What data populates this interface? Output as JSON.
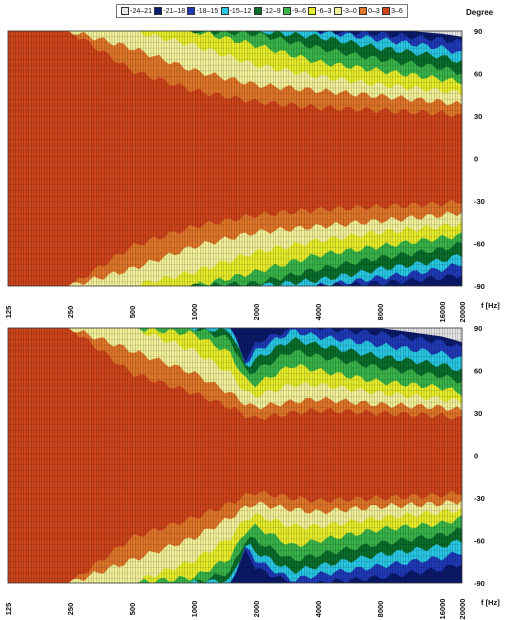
{
  "legend": {
    "items": [
      {
        "label": "-24–21",
        "color": "#e6e6e6"
      },
      {
        "label": "-21–18",
        "color": "#0b1a6b"
      },
      {
        "label": "-18–15",
        "color": "#1f3ab8"
      },
      {
        "label": "-15–12",
        "color": "#29c9e6"
      },
      {
        "label": "-12–9",
        "color": "#0a6e2c"
      },
      {
        "label": "-9–6",
        "color": "#39b54a"
      },
      {
        "label": "-6–3",
        "color": "#e8ef2a"
      },
      {
        "label": "-3–0",
        "color": "#f4f29a"
      },
      {
        "label": "0–3",
        "color": "#e2772a"
      },
      {
        "label": "3–6",
        "color": "#d0451b"
      }
    ]
  },
  "y_title": "Degree",
  "chart_data": [
    {
      "type": "heatmap",
      "xlabel": "f [Hz]",
      "ylabel": "Degree",
      "x_ticks": [
        125,
        250,
        500,
        1000,
        2000,
        4000,
        8000,
        16000,
        20000
      ],
      "y_ticks": [
        90,
        60,
        30,
        0,
        -30,
        -60,
        -90
      ],
      "xlim": [
        125,
        20000
      ],
      "ylim": [
        -90,
        90
      ],
      "x_scale": "log",
      "level_colors": [
        "#e6e6e6",
        "#0b1a6b",
        "#1f3ab8",
        "#29c9e6",
        "#0a6e2c",
        "#39b54a",
        "#e8ef2a",
        "#f4f29a",
        "#e2772a"
      ],
      "boundaries_deg": {
        "freqs": [
          125,
          250,
          500,
          1000,
          2000,
          4000,
          8000,
          16000,
          20000
        ],
        "level_0_3": [
          90,
          90,
          62,
          48,
          40,
          36,
          34,
          32,
          30
        ],
        "level_m3_0": [
          90,
          90,
          78,
          62,
          52,
          48,
          44,
          40,
          38
        ],
        "level_m6_3": [
          90,
          90,
          90,
          80,
          66,
          58,
          52,
          48,
          46
        ],
        "level_m9_6": [
          90,
          90,
          90,
          90,
          80,
          68,
          62,
          56,
          54
        ],
        "level_m12_9": [
          90,
          90,
          90,
          90,
          88,
          78,
          70,
          64,
          60
        ],
        "level_m15_12": [
          90,
          90,
          90,
          90,
          90,
          86,
          78,
          72,
          68
        ],
        "level_m18_15": [
          90,
          90,
          90,
          90,
          90,
          90,
          84,
          78,
          74
        ],
        "level_m21_18": [
          90,
          90,
          90,
          90,
          90,
          90,
          88,
          84,
          82
        ]
      }
    },
    {
      "type": "heatmap",
      "xlabel": "f [Hz]",
      "ylabel": "Degree",
      "x_ticks": [
        125,
        250,
        500,
        1000,
        2000,
        4000,
        8000,
        16000,
        20000
      ],
      "y_ticks": [
        90,
        60,
        30,
        0,
        -30,
        -60,
        -90
      ],
      "xlim": [
        125,
        20000
      ],
      "ylim": [
        -90,
        90
      ],
      "x_scale": "log",
      "level_colors": [
        "#e6e6e6",
        "#0b1a6b",
        "#1f3ab8",
        "#29c9e6",
        "#0a6e2c",
        "#39b54a",
        "#e8ef2a",
        "#f4f29a",
        "#e2772a"
      ],
      "boundaries_deg": {
        "freqs": [
          125,
          250,
          500,
          1000,
          1500,
          1800,
          2000,
          3000,
          4000,
          8000,
          16000,
          20000
        ],
        "level_0_3": [
          90,
          90,
          58,
          44,
          34,
          28,
          26,
          30,
          32,
          30,
          28,
          26
        ],
        "level_m3_0": [
          90,
          90,
          74,
          58,
          44,
          36,
          34,
          38,
          40,
          36,
          34,
          32
        ],
        "level_m6_3": [
          90,
          90,
          90,
          74,
          58,
          44,
          42,
          50,
          50,
          44,
          40,
          38
        ],
        "level_m9_6": [
          90,
          90,
          90,
          86,
          72,
          52,
          50,
          64,
          60,
          52,
          48,
          44
        ],
        "level_m12_9": [
          90,
          90,
          90,
          90,
          82,
          58,
          60,
          74,
          70,
          62,
          56,
          52
        ],
        "level_m15_12": [
          90,
          90,
          90,
          90,
          88,
          62,
          68,
          82,
          78,
          70,
          64,
          60
        ],
        "level_m18_15": [
          90,
          90,
          90,
          90,
          90,
          64,
          74,
          88,
          84,
          78,
          72,
          68
        ],
        "level_m21_18": [
          90,
          90,
          90,
          90,
          90,
          66,
          80,
          90,
          90,
          86,
          80,
          76
        ]
      }
    }
  ]
}
